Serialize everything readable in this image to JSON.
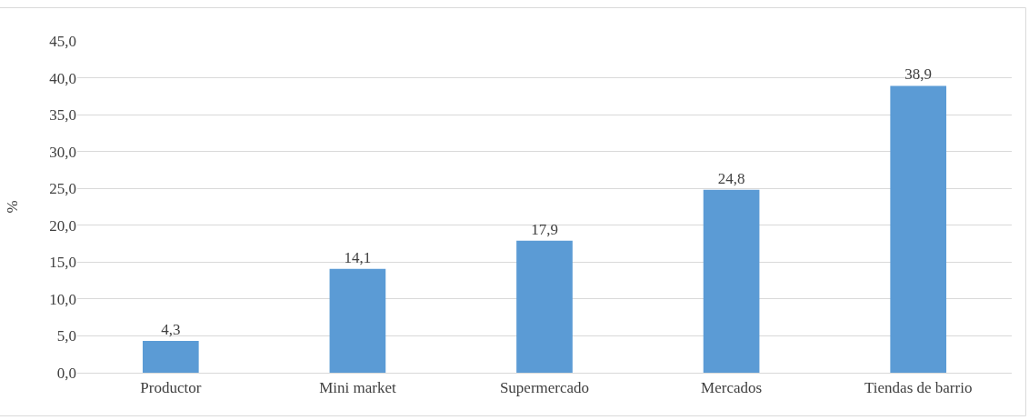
{
  "chart_data": {
    "type": "bar",
    "ylabel": "%",
    "categories": [
      "Productor",
      "Mini market",
      "Supermercado",
      "Mercados",
      "Tiendas de barrio"
    ],
    "values": [
      4.3,
      14.1,
      17.9,
      24.8,
      38.9
    ],
    "value_labels": [
      "4,3",
      "14,1",
      "17,9",
      "24,8",
      "38,9"
    ],
    "color": "#5b9bd5",
    "ylim": [
      0,
      45
    ],
    "yticks": [
      {
        "value": 0,
        "label": "0,0"
      },
      {
        "value": 5,
        "label": "5,0"
      },
      {
        "value": 10,
        "label": "10,0"
      },
      {
        "value": 15,
        "label": "15,0"
      },
      {
        "value": 20,
        "label": "20,0"
      },
      {
        "value": 25,
        "label": "25,0"
      },
      {
        "value": 30,
        "label": "30,0"
      },
      {
        "value": 35,
        "label": "35,0"
      },
      {
        "value": 40,
        "label": "40,0"
      },
      {
        "value": 45,
        "label": "45,0"
      }
    ],
    "grid": "y"
  }
}
